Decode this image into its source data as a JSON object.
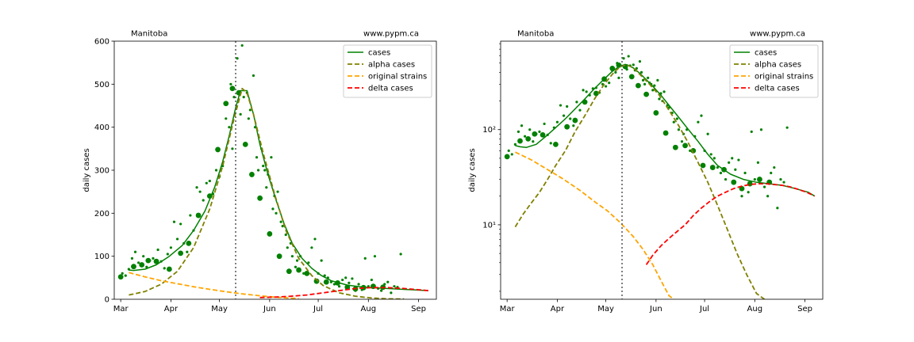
{
  "colors": {
    "cases": "#008000",
    "alpha": "#808000",
    "original": "#ffa500",
    "delta": "#ff0000",
    "vline": "#555555",
    "legend_border": "#cccccc"
  },
  "chart_data": [
    {
      "type": "line",
      "title_left": "Manitoba",
      "title_right": "www.pypm.ca",
      "ylabel": "daily cases",
      "yscale": "linear",
      "x_ticks": [
        "Mar",
        "Apr",
        "May",
        "Jun",
        "Jul",
        "Aug",
        "Sep"
      ],
      "x_tick_days": [
        0,
        31,
        61,
        92,
        122,
        153,
        184
      ],
      "xlim": [
        -4,
        195
      ],
      "ylim": [
        0,
        600
      ],
      "y_ticks": [
        0,
        100,
        200,
        300,
        400,
        500,
        600
      ],
      "y_tick_labels": [
        "0",
        "100",
        "200",
        "300",
        "400",
        "500",
        "600"
      ],
      "vline_day": 71,
      "legend": [
        "cases",
        "alpha cases",
        "original strains",
        "delta cases"
      ],
      "legend_position": "upper right",
      "series": [
        {
          "name": "cases",
          "x": [
            5,
            8,
            15,
            22,
            30,
            38,
            45,
            52,
            58,
            63,
            67,
            71,
            74,
            78,
            82,
            86,
            91,
            96,
            101,
            106,
            112,
            118,
            124,
            130,
            140,
            150,
            160,
            170,
            180,
            190
          ],
          "values": [
            68,
            67,
            70,
            80,
            100,
            125,
            160,
            205,
            260,
            320,
            380,
            445,
            485,
            485,
            430,
            360,
            290,
            230,
            175,
            130,
            95,
            72,
            55,
            43,
            33,
            28,
            26,
            24,
            22,
            20
          ]
        },
        {
          "name": "alpha cases",
          "x": [
            5,
            15,
            25,
            35,
            45,
            55,
            63,
            70,
            75,
            78,
            82,
            88,
            95,
            102,
            110,
            118,
            125,
            135,
            145,
            155,
            165,
            175
          ],
          "values": [
            10,
            18,
            35,
            65,
            120,
            210,
            310,
            420,
            490,
            480,
            430,
            340,
            245,
            160,
            95,
            55,
            32,
            15,
            7,
            3,
            1,
            0.5
          ]
        },
        {
          "name": "original strains",
          "x": [
            5,
            15,
            25,
            35,
            45,
            55,
            65,
            75,
            85,
            95,
            105,
            110
          ],
          "values": [
            62,
            52,
            43,
            36,
            29,
            23,
            17.5,
            12.5,
            8.5,
            5,
            2.5,
            1.5
          ]
        },
        {
          "name": "delta cases",
          "x": [
            86,
            95,
            105,
            115,
            125,
            135,
            145,
            155,
            165,
            175,
            190
          ],
          "values": [
            4,
            5,
            7,
            10,
            15,
            20,
            25,
            27,
            27,
            25,
            20
          ]
        }
      ],
      "markers": {
        "x": [
          0,
          8,
          13,
          17,
          22,
          30,
          37,
          42,
          48,
          55,
          60,
          65,
          69,
          73,
          77,
          81,
          86,
          92,
          98,
          104,
          110,
          115,
          121,
          127,
          134,
          140,
          145,
          150,
          156,
          162
        ],
        "values": [
          52,
          76,
          80,
          90,
          88,
          70,
          107,
          130,
          195,
          240,
          348,
          455,
          490,
          480,
          360,
          290,
          235,
          152,
          100,
          65,
          68,
          60,
          42,
          40,
          38,
          28,
          24,
          27,
          30,
          28
        ]
      },
      "points": {
        "x": [
          1,
          3,
          5,
          7,
          9,
          11,
          14,
          16,
          18,
          20,
          23,
          25,
          27,
          29,
          31,
          33,
          35,
          37,
          39,
          41,
          43,
          45,
          47,
          49,
          51,
          53,
          55,
          57,
          59,
          61,
          63,
          65,
          67,
          68,
          69,
          70,
          72,
          74,
          75,
          76,
          78,
          79,
          80,
          82,
          83,
          84,
          85,
          87,
          88,
          89,
          90,
          91,
          93,
          94,
          95,
          96,
          97,
          99,
          100,
          102,
          103,
          105,
          106,
          108,
          109,
          111,
          113,
          116,
          118,
          120,
          122,
          124,
          126,
          128,
          130,
          132,
          135,
          137,
          139,
          141,
          143,
          145,
          147,
          149,
          151,
          153,
          155,
          157,
          159,
          161,
          163,
          165,
          167,
          169,
          171,
          173
        ],
        "values": [
          60,
          55,
          70,
          95,
          110,
          85,
          100,
          75,
          90,
          95,
          115,
          88,
          72,
          105,
          120,
          180,
          140,
          175,
          130,
          110,
          195,
          160,
          260,
          250,
          230,
          270,
          275,
          245,
          300,
          285,
          310,
          420,
          400,
          500,
          350,
          470,
          560,
          430,
          590,
          470,
          480,
          420,
          440,
          520,
          400,
          330,
          300,
          350,
          310,
          300,
          260,
          290,
          330,
          210,
          240,
          200,
          250,
          180,
          170,
          150,
          120,
          130,
          100,
          75,
          90,
          100,
          60,
          85,
          120,
          140,
          60,
          90,
          55,
          50,
          40,
          35,
          30,
          45,
          50,
          38,
          48,
          20,
          35,
          22,
          95,
          30,
          45,
          100,
          25,
          20,
          35,
          40,
          15,
          30,
          28,
          105
        ]
      }
    },
    {
      "type": "line",
      "title_left": "Manitoba",
      "title_right": "www.pypm.ca",
      "ylabel": "daily cases",
      "yscale": "log",
      "x_ticks": [
        "Mar",
        "Apr",
        "May",
        "Jun",
        "Jul",
        "Aug",
        "Sep"
      ],
      "x_tick_days": [
        0,
        31,
        61,
        92,
        122,
        153,
        184
      ],
      "xlim": [
        -4,
        195
      ],
      "ylim": [
        1.65,
        850
      ],
      "y_ticks": [
        10,
        100
      ],
      "y_tick_labels": [
        "10¹",
        "10²"
      ],
      "vline_day": 71,
      "legend": [
        "cases",
        "alpha cases",
        "original strains",
        "delta cases"
      ],
      "legend_position": "upper right",
      "series": [
        {
          "name": "cases",
          "x": [
            5,
            8,
            12,
            18,
            24,
            30,
            36,
            42,
            48,
            54,
            60,
            65,
            70,
            74,
            78,
            82,
            86,
            90,
            95,
            100,
            106,
            112,
            118,
            124,
            130,
            138,
            146,
            154,
            162,
            170,
            178,
            186,
            190
          ],
          "values": [
            68,
            66,
            65,
            70,
            85,
            105,
            130,
            165,
            210,
            270,
            340,
            410,
            470,
            480,
            445,
            390,
            335,
            285,
            230,
            180,
            135,
            100,
            75,
            55,
            42,
            34,
            30,
            28,
            27,
            26,
            24,
            22,
            20
          ]
        },
        {
          "name": "alpha cases",
          "x": [
            5,
            10,
            15,
            20,
            25,
            30,
            36,
            42,
            48,
            54,
            60,
            66,
            70,
            74,
            78,
            82,
            88,
            94,
            100,
            106,
            112,
            118,
            124,
            130,
            136,
            142,
            148,
            154,
            160
          ],
          "values": [
            9.5,
            13,
            17,
            22,
            30,
            42,
            60,
            95,
            140,
            210,
            300,
            400,
            460,
            480,
            445,
            380,
            300,
            230,
            160,
            110,
            72,
            45,
            28,
            16,
            9,
            5,
            3,
            1.9,
            1.6
          ]
        },
        {
          "name": "original strains",
          "x": [
            5,
            15,
            25,
            35,
            45,
            55,
            62,
            70,
            78,
            84,
            90,
            95,
            100,
            104
          ],
          "values": [
            58,
            48,
            38,
            30,
            23,
            17,
            14,
            10.5,
            7.5,
            5.5,
            3.8,
            2.6,
            1.8,
            1.6
          ]
        },
        {
          "name": "delta cases",
          "x": [
            86,
            90,
            95,
            100,
            105,
            110,
            115,
            120,
            125,
            130,
            135,
            140,
            145,
            150,
            155,
            160,
            165,
            170,
            175,
            180,
            185,
            190
          ],
          "values": [
            3.8,
            4.8,
            6,
            7.2,
            8.5,
            10,
            12.5,
            15,
            17.5,
            20,
            22,
            24,
            25.5,
            26.5,
            27,
            27,
            26.5,
            26,
            25,
            23.5,
            22,
            20
          ]
        }
      ],
      "markers": {
        "x": [
          0,
          8,
          13,
          17,
          22,
          30,
          37,
          42,
          48,
          55,
          60,
          65,
          69,
          73,
          77,
          81,
          86,
          92,
          98,
          104,
          110,
          115,
          121,
          127,
          134,
          140,
          145,
          150,
          156,
          162
        ],
        "values": [
          52,
          76,
          80,
          90,
          88,
          70,
          107,
          125,
          195,
          240,
          340,
          440,
          475,
          460,
          360,
          290,
          235,
          150,
          92,
          65,
          68,
          60,
          42,
          40,
          38,
          28,
          24,
          27,
          30,
          28
        ]
      },
      "points": {
        "x": [
          1,
          3,
          5,
          7,
          9,
          11,
          14,
          16,
          18,
          20,
          23,
          25,
          27,
          29,
          31,
          33,
          35,
          37,
          39,
          41,
          43,
          45,
          47,
          49,
          51,
          53,
          55,
          57,
          59,
          61,
          63,
          65,
          67,
          68,
          69,
          70,
          72,
          74,
          75,
          76,
          78,
          79,
          80,
          82,
          83,
          84,
          85,
          87,
          88,
          89,
          90,
          91,
          93,
          94,
          95,
          96,
          97,
          99,
          100,
          102,
          103,
          105,
          106,
          108,
          109,
          111,
          113,
          116,
          118,
          120,
          122,
          124,
          126,
          128,
          130,
          132,
          135,
          137,
          139,
          141,
          143,
          145,
          147,
          149,
          151,
          153,
          155,
          157,
          159,
          161,
          163,
          165,
          167,
          169,
          171,
          173
        ],
        "values": [
          60,
          55,
          70,
          95,
          110,
          85,
          100,
          75,
          90,
          95,
          115,
          88,
          72,
          105,
          120,
          180,
          140,
          175,
          130,
          110,
          195,
          160,
          260,
          250,
          230,
          270,
          275,
          245,
          300,
          285,
          310,
          420,
          400,
          500,
          350,
          470,
          560,
          430,
          590,
          470,
          480,
          420,
          440,
          520,
          400,
          330,
          300,
          350,
          310,
          300,
          260,
          290,
          330,
          210,
          240,
          200,
          250,
          180,
          170,
          150,
          120,
          130,
          100,
          75,
          90,
          100,
          60,
          85,
          120,
          140,
          60,
          90,
          55,
          50,
          40,
          35,
          30,
          45,
          50,
          38,
          48,
          20,
          35,
          22,
          95,
          30,
          45,
          100,
          25,
          20,
          35,
          40,
          15,
          30,
          28,
          105
        ]
      }
    }
  ]
}
